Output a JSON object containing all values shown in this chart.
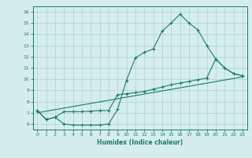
{
  "line1_x": [
    0,
    1,
    2,
    3,
    4,
    5,
    6,
    7,
    8,
    9,
    10,
    11,
    12,
    13,
    14,
    15,
    16,
    17,
    18,
    19,
    20,
    21,
    22,
    23
  ],
  "line1_y": [
    7.2,
    6.4,
    6.6,
    6.0,
    5.9,
    5.9,
    5.9,
    5.9,
    6.0,
    7.3,
    9.9,
    11.9,
    12.4,
    12.7,
    14.3,
    15.0,
    15.8,
    15.0,
    14.4,
    13.0,
    11.8,
    11.0,
    10.5,
    10.3
  ],
  "line2_x": [
    0,
    1,
    2,
    3,
    4,
    5,
    6,
    7,
    8,
    9,
    10,
    11,
    12,
    13,
    14,
    15,
    16,
    17,
    18,
    19,
    20,
    21,
    22,
    23
  ],
  "line2_y": [
    7.2,
    6.4,
    6.6,
    7.1,
    7.1,
    7.1,
    7.15,
    7.2,
    7.2,
    8.6,
    8.7,
    8.8,
    8.9,
    9.1,
    9.3,
    9.5,
    9.65,
    9.8,
    9.95,
    10.1,
    11.8,
    11.0,
    10.5,
    10.3
  ],
  "line3_x": [
    0,
    23
  ],
  "line3_y": [
    7.0,
    10.2
  ],
  "line_color": "#1a7a6e",
  "bg_color": "#d6eeeb",
  "grid_color": "#b0d8d4",
  "xlabel": "Humidex (Indice chaleur)",
  "ylim": [
    5.5,
    16.5
  ],
  "xlim": [
    -0.5,
    23.5
  ],
  "yticks": [
    6,
    7,
    8,
    9,
    10,
    11,
    12,
    13,
    14,
    15,
    16
  ],
  "xticks": [
    0,
    1,
    2,
    3,
    4,
    5,
    6,
    7,
    8,
    9,
    10,
    11,
    12,
    13,
    14,
    15,
    16,
    17,
    18,
    19,
    20,
    21,
    22,
    23
  ]
}
